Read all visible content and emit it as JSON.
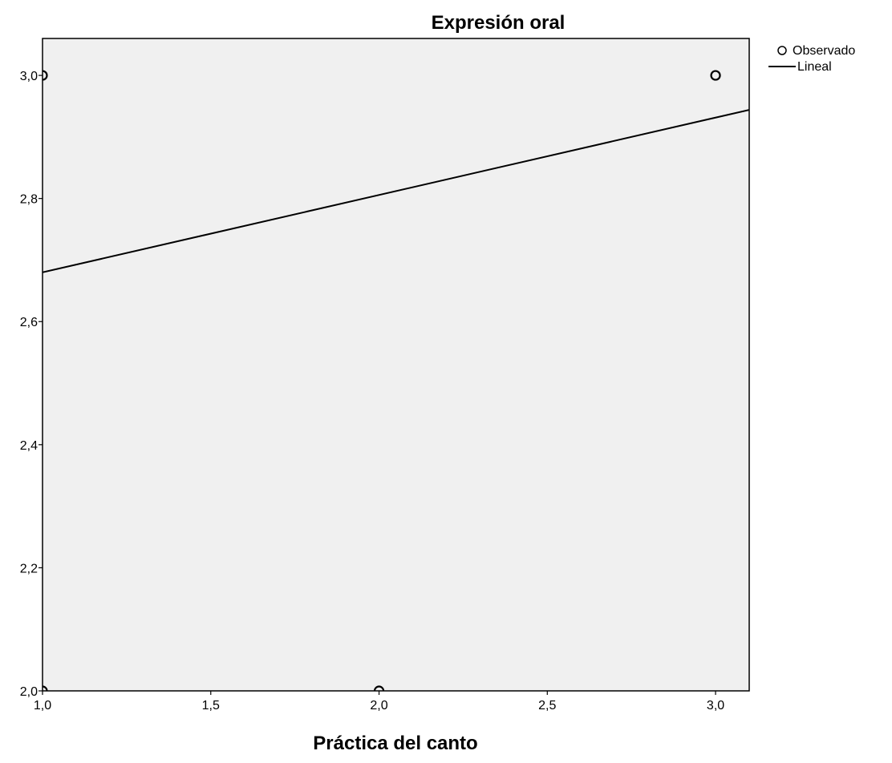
{
  "chart_data": {
    "type": "scatter",
    "title": "Expresión oral",
    "xlabel": "Práctica del canto",
    "ylabel": "",
    "xlim": [
      1.0,
      3.1
    ],
    "ylim": [
      2.0,
      3.06
    ],
    "x_ticks": [
      1.0,
      1.5,
      2.0,
      2.5,
      3.0
    ],
    "x_tick_labels": [
      "1,0",
      "1,5",
      "2,0",
      "2,5",
      "3,0"
    ],
    "y_ticks": [
      2.0,
      2.2,
      2.4,
      2.6,
      2.8,
      3.0
    ],
    "y_tick_labels": [
      "2,0",
      "2,2",
      "2,4",
      "2,6",
      "2,8",
      "3,0"
    ],
    "grid": false,
    "legend_position": "right",
    "plot_background": "#f0f0f0",
    "series": [
      {
        "name": "Observado",
        "kind": "scatter",
        "marker": "open-circle",
        "color": "#000000",
        "x": [
          1.0,
          1.0,
          2.0,
          3.0
        ],
        "y": [
          3.0,
          2.0,
          2.0,
          3.0
        ]
      },
      {
        "name": "Lineal",
        "kind": "line",
        "color": "#000000",
        "x": [
          1.0,
          3.1
        ],
        "y": [
          2.68,
          2.944
        ]
      }
    ]
  }
}
